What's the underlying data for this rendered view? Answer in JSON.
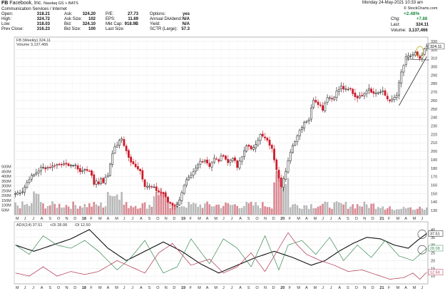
{
  "header": {
    "symbol": "FB",
    "company": "Facebook, Inc.",
    "exchange": "Nasdaq GS + BATS",
    "sector": "Communication Services / Internet",
    "date": "Monday  24-May-2021  10:33 am",
    "copyright": "© StockCharts.com",
    "change_pct": "+2.48%",
    "chg_label": "Chg:",
    "chg_value": "+7.88",
    "last_label": "Last:",
    "last_value": "324.11",
    "volume_label": "Volume:",
    "volume_value": "3,137,466",
    "quote_rows": [
      {
        "l1": "Open:",
        "v1": "318.21",
        "l2": "Ask:",
        "v2": "324.20",
        "l3": "P/E:",
        "v3": "27.73",
        "l4": "Options:",
        "v4": "yes"
      },
      {
        "l1": "High:",
        "v1": "324.72",
        "l2": "Ask Size:",
        "v2": "102",
        "l3": "EPS:",
        "v3": "11.69",
        "l4": "Annual Dividend:",
        "v4": "N/A"
      },
      {
        "l1": "Low:",
        "v1": "318.03",
        "l2": "Bid:",
        "v2": "324.10",
        "l3": "Mkt Cap:",
        "v3": "918.9B",
        "l4": "Yield:",
        "v4": "N/A"
      },
      {
        "l1": "Prev Close:",
        "v1": "316.23",
        "l2": "Bid Size:",
        "v2": "100",
        "l3": "Last Size:",
        "v3": "",
        "l4": "SCTR (Large):",
        "v4": "57.3"
      }
    ]
  },
  "price_legend": "FB (Weekly) 324.11",
  "volume_legend": "Volume 3,137,466",
  "adx_legend": {
    "adx": "ADX(14) 37.51",
    "pdi": "+DI 28.08",
    "mdi": "-DI 12.50"
  },
  "colors": {
    "up": "#111111",
    "down": "#cc1a2a",
    "volume": "#b8b8b8",
    "volume_down": "#d98a93",
    "adx": "#111111",
    "pdi": "#3a8a55",
    "mdi": "#b03050",
    "trend": "#222222",
    "highlight": "#b8a800"
  },
  "chart_data": [
    {
      "type": "candlestick",
      "title": "FB (Weekly) 324.11",
      "y_ticks": [
        130,
        140,
        150,
        160,
        170,
        180,
        190,
        200,
        210,
        220,
        230,
        240,
        250,
        260,
        270,
        280,
        290,
        300,
        310,
        320,
        330
      ],
      "ylim": [
        125,
        335
      ],
      "y_scale": "linear",
      "last_tag": "324.11",
      "x_axis": [
        "M",
        "J",
        "J",
        "A",
        "S",
        "O",
        "N",
        "D",
        "18",
        "F",
        "M",
        "A",
        "M",
        "J",
        "J",
        "A",
        "S",
        "O",
        "N",
        "D",
        "19",
        "F",
        "M",
        "A",
        "M",
        "J",
        "J",
        "A",
        "S",
        "O",
        "N",
        "D",
        "20",
        "F",
        "M",
        "A",
        "M",
        "J",
        "J",
        "A",
        "S",
        "O",
        "N",
        "D",
        "21",
        "F",
        "M",
        "A",
        "M",
        "J"
      ],
      "price_anchors": [
        [
          0,
          150
        ],
        [
          3,
          153
        ],
        [
          6,
          168
        ],
        [
          8,
          172
        ],
        [
          11,
          180
        ],
        [
          14,
          181
        ],
        [
          16,
          182
        ],
        [
          17,
          184
        ],
        [
          19,
          184
        ],
        [
          21,
          187
        ],
        [
          22,
          183
        ],
        [
          23,
          181
        ],
        [
          24,
          185
        ],
        [
          26,
          182
        ],
        [
          27,
          180
        ],
        [
          28,
          176
        ],
        [
          30,
          178
        ],
        [
          32,
          178
        ],
        [
          34,
          161
        ],
        [
          35,
          166
        ],
        [
          36,
          161
        ],
        [
          37,
          168
        ],
        [
          38,
          164
        ],
        [
          40,
          172
        ],
        [
          42,
          199
        ],
        [
          44,
          208
        ],
        [
          46,
          215
        ],
        [
          48,
          200
        ],
        [
          50,
          186
        ],
        [
          52,
          183
        ],
        [
          54,
          177
        ],
        [
          56,
          160
        ],
        [
          58,
          158
        ],
        [
          60,
          156
        ],
        [
          62,
          152
        ],
        [
          64,
          150
        ],
        [
          66,
          140
        ],
        [
          68,
          137
        ],
        [
          70,
          136
        ],
        [
          72,
          152
        ],
        [
          74,
          165
        ],
        [
          76,
          170
        ],
        [
          78,
          179
        ],
        [
          80,
          188
        ],
        [
          82,
          190
        ],
        [
          84,
          183
        ],
        [
          86,
          191
        ],
        [
          88,
          189
        ],
        [
          90,
          196
        ],
        [
          92,
          186
        ],
        [
          94,
          193
        ],
        [
          96,
          181
        ],
        [
          98,
          193
        ],
        [
          100,
          208
        ],
        [
          102,
          201
        ],
        [
          104,
          210
        ],
        [
          106,
          219
        ],
        [
          108,
          215
        ],
        [
          110,
          208
        ],
        [
          111,
          202
        ],
        [
          113,
          180
        ],
        [
          115,
          160
        ],
        [
          117,
          175
        ],
        [
          119,
          200
        ],
        [
          121,
          213
        ],
        [
          123,
          225
        ],
        [
          125,
          235
        ],
        [
          127,
          238
        ],
        [
          129,
          262
        ],
        [
          131,
          257
        ],
        [
          133,
          250
        ],
        [
          135,
          265
        ],
        [
          137,
          262
        ],
        [
          139,
          270
        ],
        [
          141,
          276
        ],
        [
          143,
          272
        ],
        [
          145,
          273
        ],
        [
          147,
          265
        ],
        [
          149,
          264
        ],
        [
          151,
          270
        ],
        [
          153,
          275
        ],
        [
          155,
          268
        ],
        [
          157,
          270
        ],
        [
          159,
          270
        ],
        [
          161,
          262
        ],
        [
          163,
          260
        ],
        [
          165,
          266
        ],
        [
          167,
          293
        ],
        [
          169,
          310
        ],
        [
          171,
          313
        ],
        [
          173,
          316
        ],
        [
          175,
          308
        ],
        [
          177,
          319
        ],
        [
          178,
          324.11
        ]
      ],
      "volume": {
        "ylim": [
          0,
          520
        ],
        "y_ticks_m": [
          50,
          100,
          150,
          200,
          250,
          300,
          350,
          400,
          450,
          500
        ],
        "labels": [
          "50M",
          "100M",
          "150M",
          "200M",
          "250M",
          "300M",
          "350M",
          "400M",
          "450M",
          "500M"
        ]
      }
    },
    {
      "type": "line",
      "title": "ADX(14) 37.51 +DI 28.08 -DI 12.50",
      "ylim": [
        5,
        45
      ],
      "y_ticks": [
        10,
        15,
        20,
        25,
        30,
        35,
        40
      ],
      "x_axis": [
        "M",
        "J",
        "J",
        "A",
        "S",
        "O",
        "N",
        "D",
        "18",
        "F",
        "M",
        "A",
        "M",
        "J",
        "J",
        "A",
        "S",
        "O",
        "N",
        "D",
        "19",
        "F",
        "M",
        "A",
        "M",
        "J",
        "J",
        "A",
        "S",
        "O",
        "N",
        "D",
        "20",
        "F",
        "M",
        "A",
        "M",
        "J",
        "J",
        "A",
        "S",
        "O",
        "N",
        "D",
        "21",
        "F",
        "M",
        "A",
        "M",
        "J"
      ],
      "series": [
        {
          "name": "ADX(14) 37.51",
          "last_tag": "37.51",
          "anchors": [
            [
              0,
              30
            ],
            [
              8,
              26
            ],
            [
              16,
              30
            ],
            [
              24,
              34
            ],
            [
              32,
              40
            ],
            [
              40,
              28
            ],
            [
              48,
              20
            ],
            [
              56,
              26
            ],
            [
              64,
              32
            ],
            [
              72,
              26
            ],
            [
              80,
              18
            ],
            [
              88,
              12
            ],
            [
              96,
              17
            ],
            [
              104,
              22
            ],
            [
              112,
              26
            ],
            [
              120,
              22
            ],
            [
              128,
              17
            ],
            [
              134,
              20
            ],
            [
              140,
              26
            ],
            [
              146,
              31
            ],
            [
              152,
              35
            ],
            [
              158,
              34
            ],
            [
              164,
              30
            ],
            [
              170,
              28
            ],
            [
              174,
              33
            ],
            [
              178,
              37.5
            ]
          ]
        },
        {
          "name": "+DI 28.08",
          "last_tag": "28.08",
          "anchors": [
            [
              0,
              30
            ],
            [
              6,
              24
            ],
            [
              12,
              36
            ],
            [
              18,
              30
            ],
            [
              24,
              28
            ],
            [
              30,
              33
            ],
            [
              36,
              26
            ],
            [
              44,
              14
            ],
            [
              50,
              22
            ],
            [
              56,
              33
            ],
            [
              64,
              12
            ],
            [
              70,
              16
            ],
            [
              76,
              34
            ],
            [
              84,
              18
            ],
            [
              90,
              34
            ],
            [
              96,
              28
            ],
            [
              102,
              16
            ],
            [
              108,
              36
            ],
            [
              114,
              14
            ],
            [
              118,
              30
            ],
            [
              124,
              33
            ],
            [
              130,
              24
            ],
            [
              136,
              35
            ],
            [
              142,
              20
            ],
            [
              148,
              30
            ],
            [
              154,
              22
            ],
            [
              160,
              33
            ],
            [
              166,
              23
            ],
            [
              172,
              20
            ],
            [
              178,
              28
            ]
          ]
        },
        {
          "name": "-DI 12.50",
          "last_tag": "12.50",
          "anchors": [
            [
              0,
              12
            ],
            [
              6,
              10
            ],
            [
              12,
              16
            ],
            [
              18,
              10
            ],
            [
              24,
              13
            ],
            [
              30,
              11
            ],
            [
              36,
              13
            ],
            [
              44,
              20
            ],
            [
              50,
              16
            ],
            [
              56,
              12
            ],
            [
              62,
              25
            ],
            [
              68,
              31
            ],
            [
              76,
              17
            ],
            [
              84,
              21
            ],
            [
              90,
              12
            ],
            [
              96,
              16
            ],
            [
              102,
              25
            ],
            [
              108,
              13
            ],
            [
              114,
              28
            ],
            [
              118,
              38
            ],
            [
              122,
              30
            ],
            [
              126,
              24
            ],
            [
              132,
              20
            ],
            [
              138,
              17
            ],
            [
              144,
              13
            ],
            [
              150,
              14
            ],
            [
              156,
              11
            ],
            [
              162,
              8
            ],
            [
              168,
              9
            ],
            [
              172,
              12
            ],
            [
              175,
              8
            ],
            [
              178,
              12.5
            ]
          ]
        }
      ]
    }
  ]
}
